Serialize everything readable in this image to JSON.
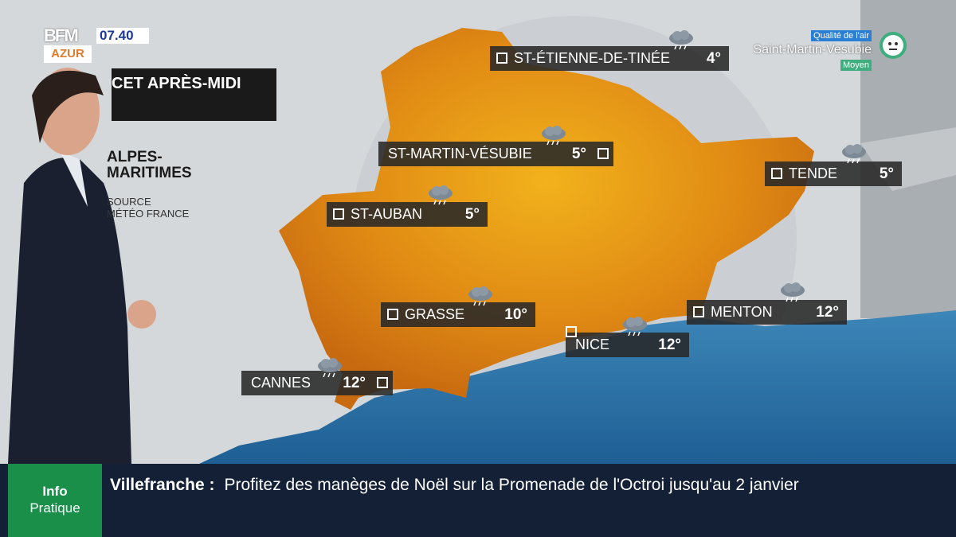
{
  "channel": {
    "logo_top": "BFM",
    "logo_bottom": "AZUR",
    "time": "07.40"
  },
  "header": {
    "period": "CET APRÈS-MIDI",
    "region_line1": "ALPES-",
    "region_line2": "MARITIMES",
    "source_line1": "SOURCE",
    "source_line2": "MÉTÉO FRANCE"
  },
  "air_quality": {
    "title": "Qualité de l'air",
    "city": "Saint-Martin-Vesubie",
    "level": "Moyen",
    "icon": "neutral-face-icon",
    "color": "#3fae7e"
  },
  "cities": [
    {
      "name": "ST-ÉTIENNE-DE-TINÉE",
      "temp": "4°",
      "weather": "rain-cloud-icon"
    },
    {
      "name": "ST-MARTIN-VÉSUBIE",
      "temp": "5°",
      "weather": "rain-cloud-icon"
    },
    {
      "name": "TENDE",
      "temp": "5°",
      "weather": "rain-cloud-icon"
    },
    {
      "name": "ST-AUBAN",
      "temp": "5°",
      "weather": "rain-cloud-icon"
    },
    {
      "name": "GRASSE",
      "temp": "10°",
      "weather": "rain-cloud-icon"
    },
    {
      "name": "MENTON",
      "temp": "12°",
      "weather": "rain-cloud-icon"
    },
    {
      "name": "NICE",
      "temp": "12°",
      "weather": "rain-cloud-icon"
    },
    {
      "name": "CANNES",
      "temp": "12°",
      "weather": "rain-cloud-icon"
    }
  ],
  "ticker": {
    "label_line1": "Info",
    "label_line2": "Pratique",
    "topic": "Villefranche :",
    "text": "Profitez des manèges de Noël sur la Promenade de l'Octroi jusqu'au 2 janvier"
  }
}
